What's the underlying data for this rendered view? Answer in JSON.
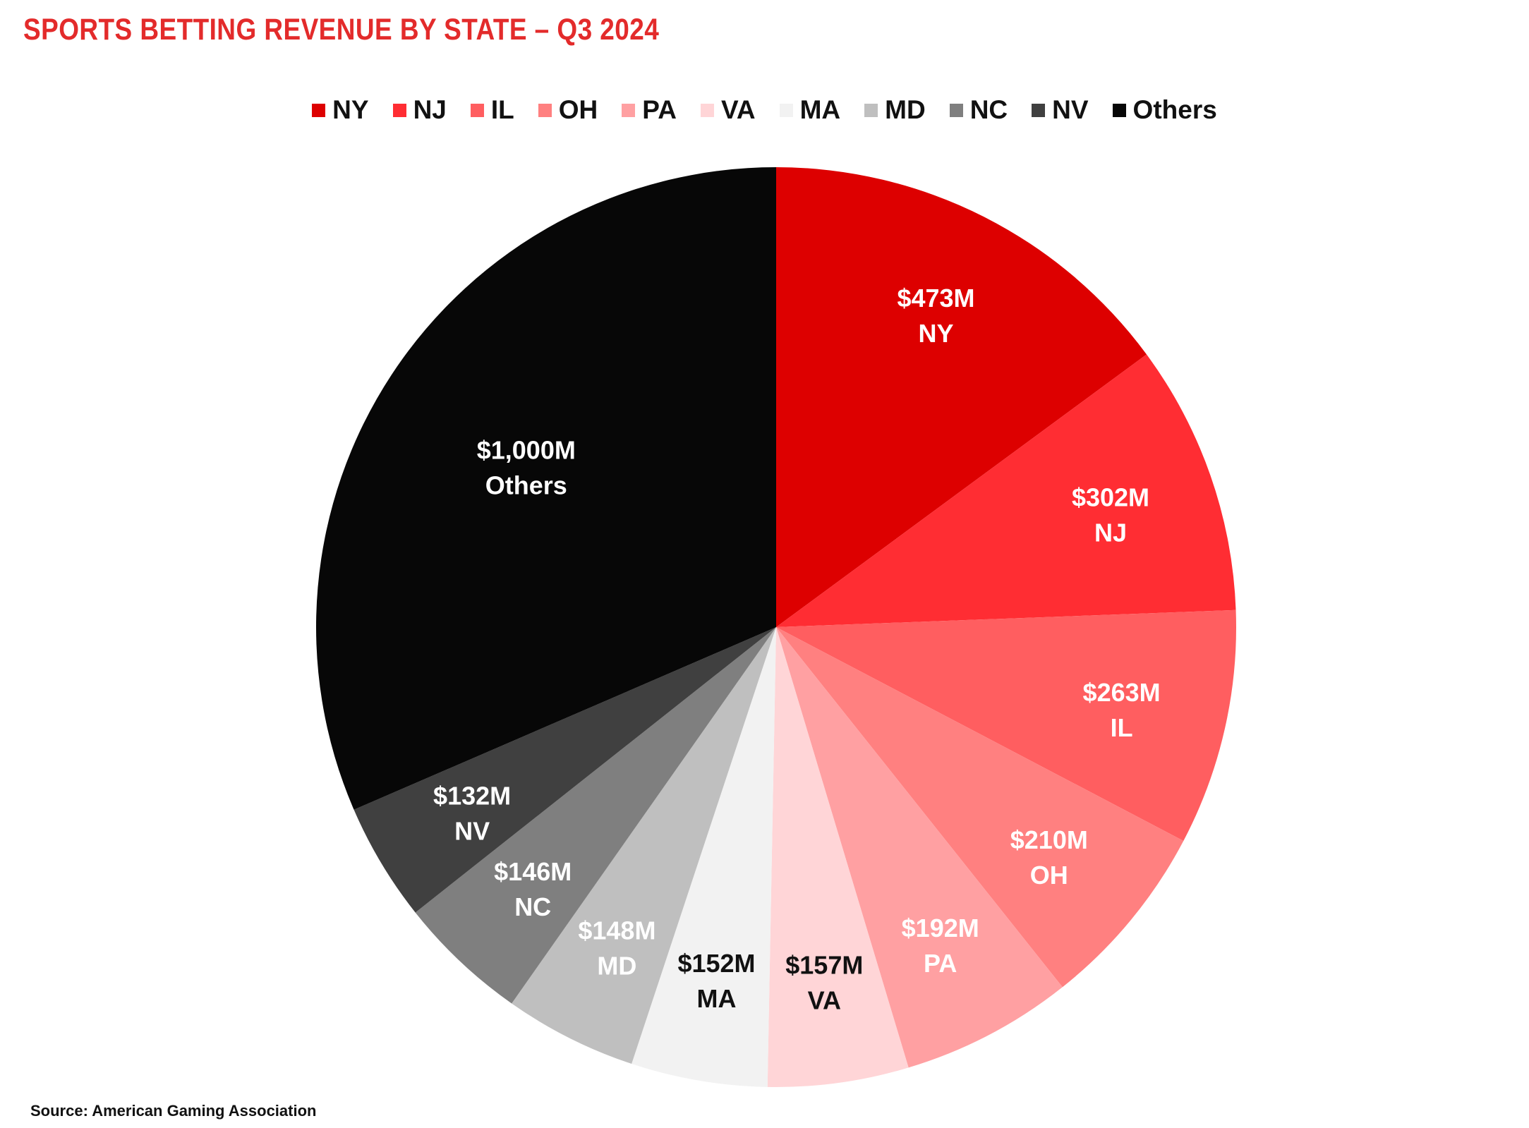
{
  "chart_data": {
    "type": "pie",
    "title": "SPORTS BETTING REVENUE BY STATE – Q3 2024",
    "unit": "USD millions",
    "start_angle": "12 o'clock, clockwise",
    "legend_position": "top-center",
    "slices": [
      {
        "label": "NY",
        "value": 473,
        "value_label": "$473M",
        "color": "#dd0000",
        "text_color": "#ffffff"
      },
      {
        "label": "NJ",
        "value": 302,
        "value_label": "$302M",
        "color": "#ff2d33",
        "text_color": "#ffffff"
      },
      {
        "label": "IL",
        "value": 263,
        "value_label": "$263M",
        "color": "#ff5e60",
        "text_color": "#ffffff"
      },
      {
        "label": "OH",
        "value": 210,
        "value_label": "$210M",
        "color": "#ff8080",
        "text_color": "#ffffff"
      },
      {
        "label": "PA",
        "value": 192,
        "value_label": "$192M",
        "color": "#ffa0a2",
        "text_color": "#ffffff"
      },
      {
        "label": "VA",
        "value": 157,
        "value_label": "$157M",
        "color": "#ffd5d7",
        "text_color": "#111111"
      },
      {
        "label": "MA",
        "value": 152,
        "value_label": "$152M",
        "color": "#f2f2f2",
        "text_color": "#111111"
      },
      {
        "label": "MD",
        "value": 148,
        "value_label": "$148M",
        "color": "#bfbfbf",
        "text_color": "#ffffff"
      },
      {
        "label": "NC",
        "value": 146,
        "value_label": "$146M",
        "color": "#7f7f7f",
        "text_color": "#ffffff"
      },
      {
        "label": "NV",
        "value": 132,
        "value_label": "$132M",
        "color": "#404040",
        "text_color": "#ffffff"
      },
      {
        "label": "Others",
        "value": 1000,
        "value_label": "$1,000M",
        "color": "#070707",
        "text_color": "#ffffff"
      }
    ]
  },
  "footer": {
    "source": "Source: American Gaming Association"
  }
}
